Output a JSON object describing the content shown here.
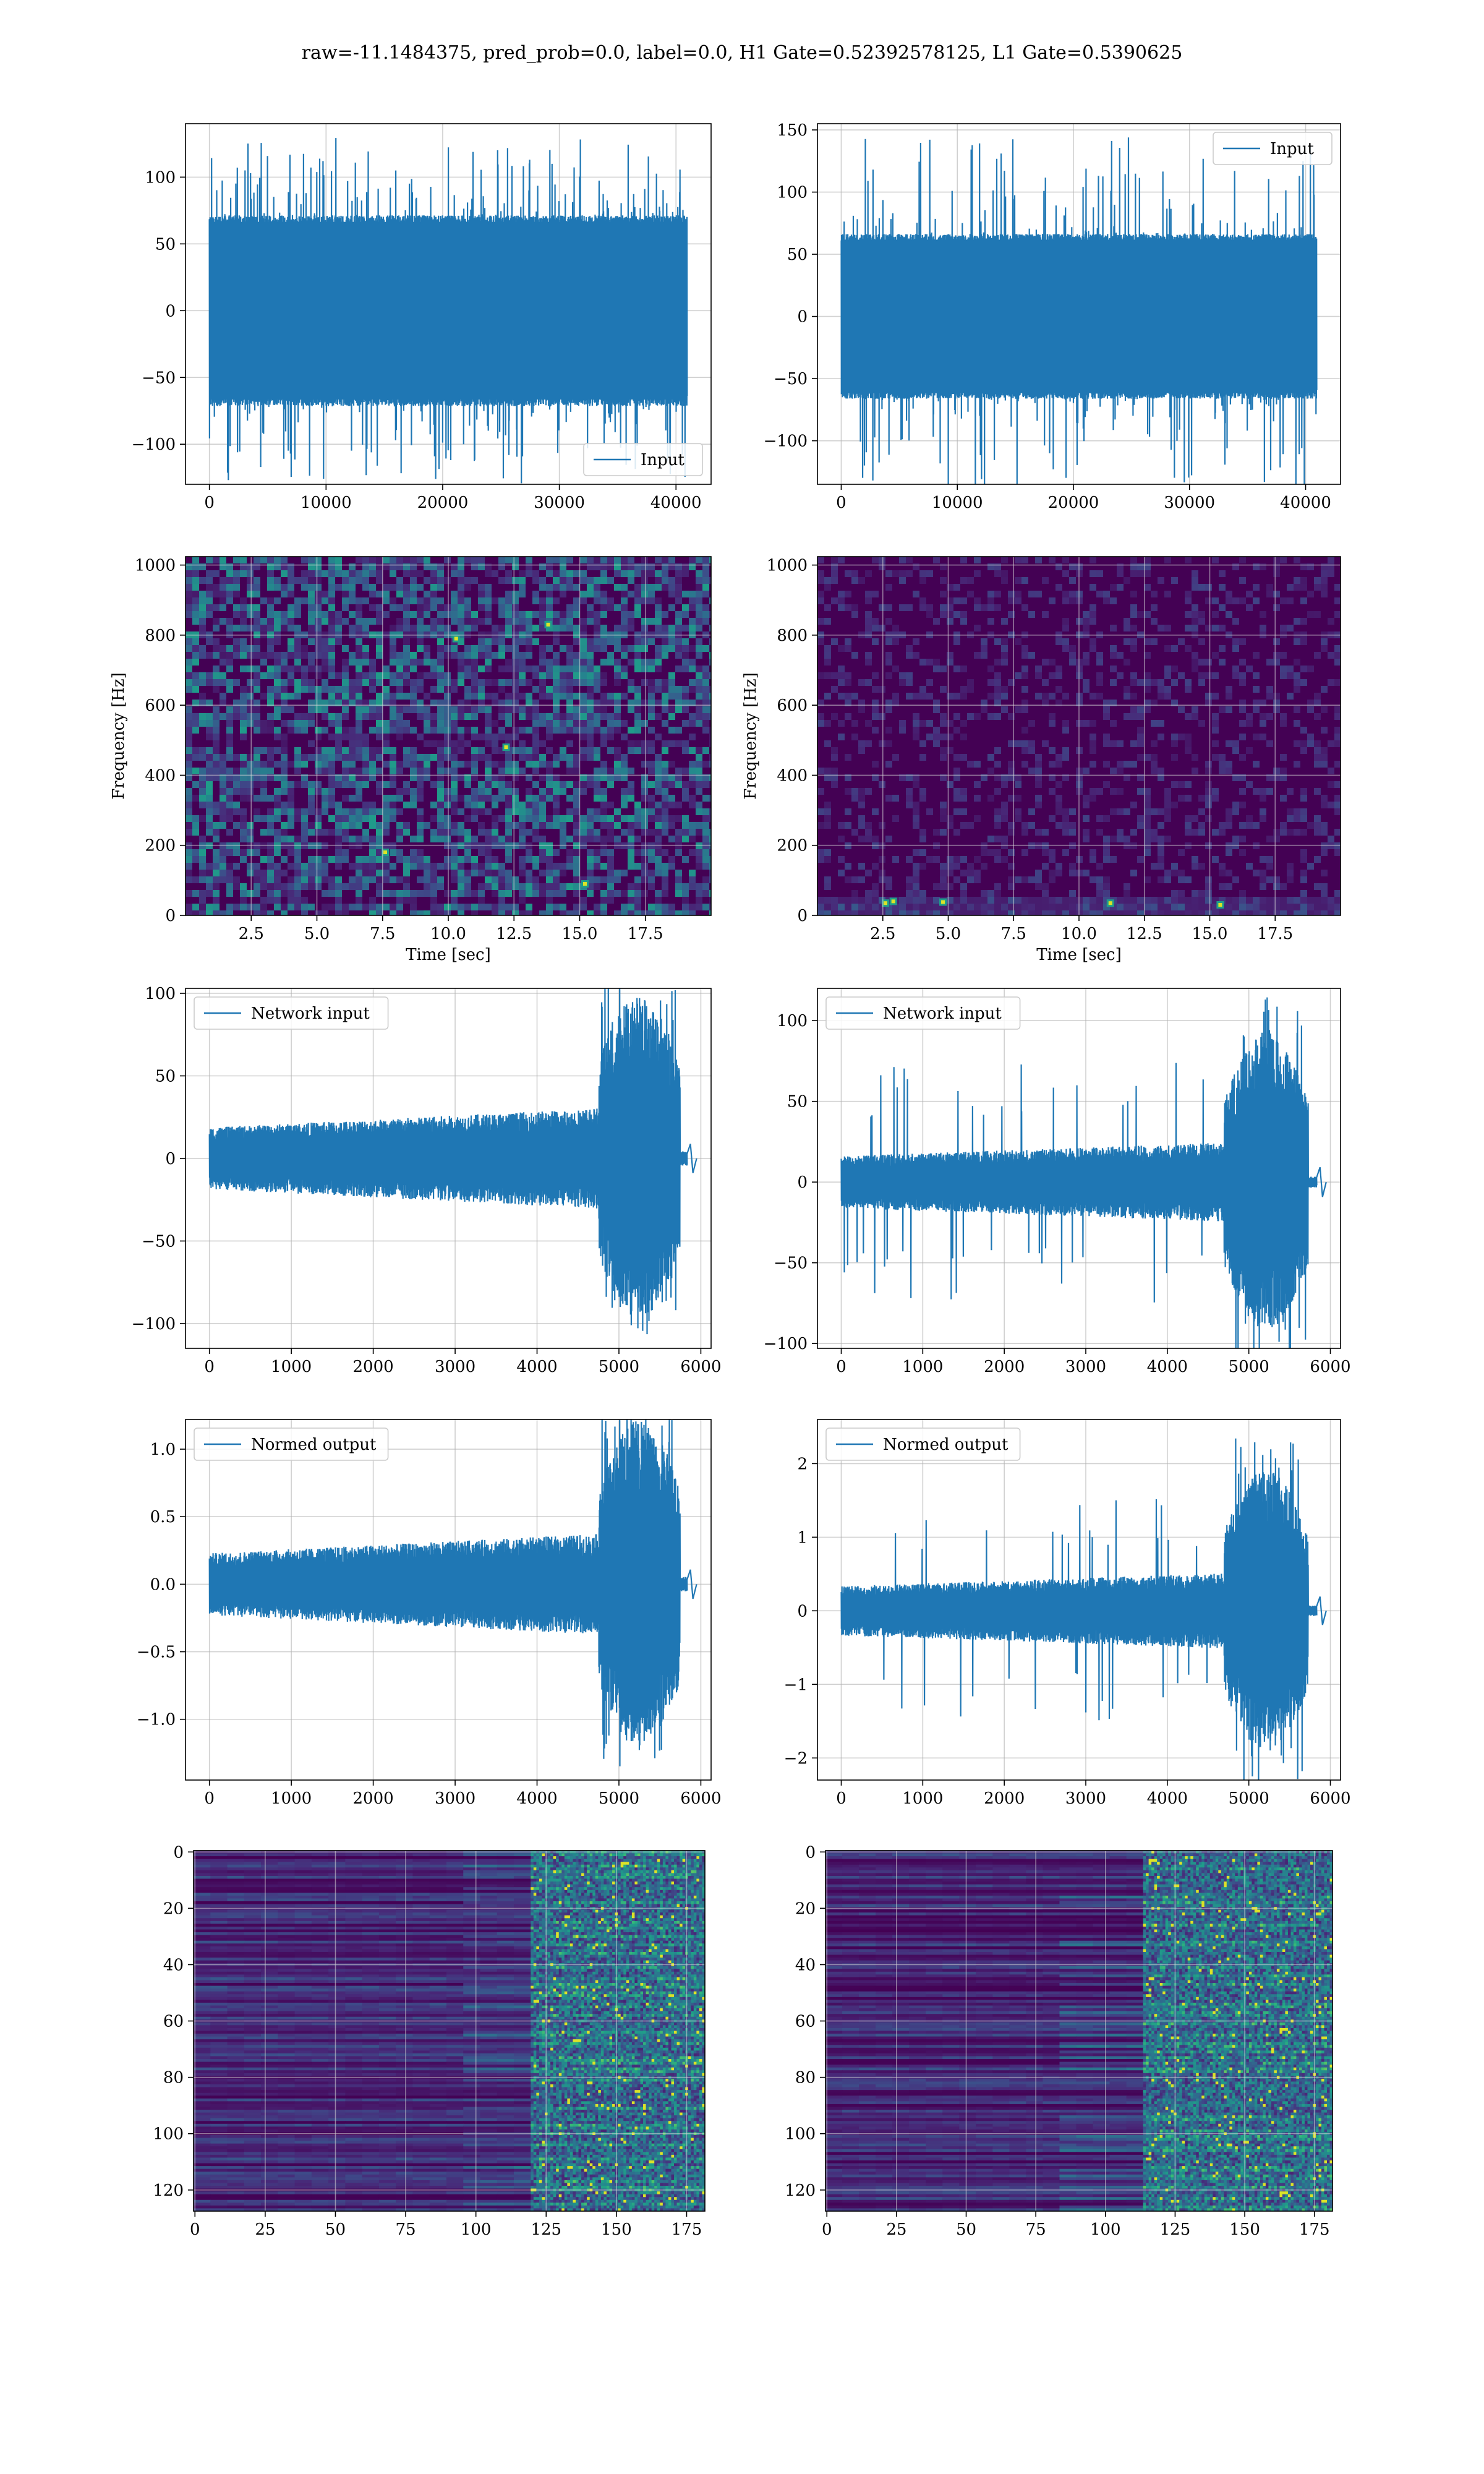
{
  "figure": {
    "title": "raw=-11.1484375, pred_prob=0.0, label=0.0, H1 Gate=0.52392578125, L1 Gate=0.5390625"
  },
  "colors": {
    "line": "#1f77b4",
    "grid": "#b0b0b0",
    "viridis_dark": "#440154",
    "viridis_mid": "#21918c",
    "viridis_light": "#5ec962",
    "viridis_yellow": "#fde725"
  },
  "chart_data": [
    {
      "id": "row1-left",
      "type": "line",
      "legend": [
        "Input"
      ],
      "legend_position": "lower-right",
      "xlim": [
        -2048,
        43008
      ],
      "ylim": [
        -130,
        140
      ],
      "xticks": [
        0,
        10000,
        20000,
        30000,
        40000
      ],
      "xtick_labels": [
        "0",
        "10000",
        "20000",
        "30000",
        "40000"
      ],
      "yticks": [
        -100,
        -50,
        0,
        50,
        100
      ],
      "ytick_labels": [
        "−100",
        "−50",
        "0",
        "50",
        "100"
      ],
      "grid": true,
      "series": [
        {
          "name": "Input",
          "x_range": [
            0,
            40959
          ],
          "body_amplitude": 70,
          "peak_amplitude": 130,
          "shape": "stationary noise"
        }
      ]
    },
    {
      "id": "row1-right",
      "type": "line",
      "legend": [
        "Input"
      ],
      "legend_position": "upper-right",
      "xlim": [
        -2048,
        43008
      ],
      "ylim": [
        -135,
        155
      ],
      "xticks": [
        0,
        10000,
        20000,
        30000,
        40000
      ],
      "xtick_labels": [
        "0",
        "10000",
        "20000",
        "30000",
        "40000"
      ],
      "yticks": [
        -100,
        -50,
        0,
        50,
        100,
        150
      ],
      "ytick_labels": [
        "−100",
        "−50",
        "0",
        "50",
        "100",
        "150"
      ],
      "grid": true,
      "series": [
        {
          "name": "Input",
          "x_range": [
            0,
            40959
          ],
          "body_amplitude": 65,
          "peak_amplitude": 145,
          "shape": "stationary noise"
        }
      ]
    },
    {
      "id": "row2-left",
      "type": "heatmap",
      "colormap": "viridis",
      "xlim": [
        0,
        20
      ],
      "ylim": [
        0,
        1024
      ],
      "xticks": [
        2.5,
        5.0,
        7.5,
        10.0,
        12.5,
        15.0,
        17.5
      ],
      "xtick_labels": [
        "2.5",
        "5.0",
        "7.5",
        "10.0",
        "12.5",
        "15.0",
        "17.5"
      ],
      "yticks": [
        0,
        200,
        400,
        600,
        800,
        1000
      ],
      "ytick_labels": [
        "0",
        "200",
        "400",
        "600",
        "800",
        "1000"
      ],
      "xlabel": "Time [sec]",
      "ylabel": "Frequency [Hz]",
      "grid": true,
      "hotspots": [
        [
          10.3,
          790
        ],
        [
          13.8,
          830
        ],
        [
          15.2,
          90
        ],
        [
          7.6,
          180
        ],
        [
          12.2,
          480
        ]
      ]
    },
    {
      "id": "row2-right",
      "type": "heatmap",
      "colormap": "viridis",
      "xlim": [
        0,
        20
      ],
      "ylim": [
        0,
        1024
      ],
      "xticks": [
        2.5,
        5.0,
        7.5,
        10.0,
        12.5,
        15.0,
        17.5
      ],
      "xtick_labels": [
        "2.5",
        "5.0",
        "7.5",
        "10.0",
        "12.5",
        "15.0",
        "17.5"
      ],
      "yticks": [
        0,
        200,
        400,
        600,
        800,
        1000
      ],
      "ytick_labels": [
        "0",
        "200",
        "400",
        "600",
        "800",
        "1000"
      ],
      "xlabel": "Time [sec]",
      "ylabel": "Frequency [Hz]",
      "grid": true,
      "hotspots": [
        [
          2.6,
          35
        ],
        [
          2.9,
          40
        ],
        [
          11.2,
          35
        ],
        [
          15.4,
          30
        ],
        [
          4.8,
          38
        ]
      ]
    },
    {
      "id": "row3-left",
      "type": "line",
      "legend": [
        "Network input"
      ],
      "legend_position": "upper-left",
      "xlim": [
        -292,
        6125
      ],
      "ylim": [
        -115,
        103
      ],
      "xticks": [
        0,
        1000,
        2000,
        3000,
        4000,
        5000,
        6000
      ],
      "xtick_labels": [
        "0",
        "1000",
        "2000",
        "3000",
        "4000",
        "5000",
        "6000"
      ],
      "yticks": [
        -100,
        -50,
        0,
        50,
        100
      ],
      "ytick_labels": [
        "−100",
        "−50",
        "0",
        "50",
        "100"
      ],
      "grid": true,
      "series": [
        {
          "name": "Network input",
          "x_range": [
            0,
            5833
          ],
          "shape": "small noise growing, large burst 4750–5750, tail blip at 5800",
          "peak_amplitude": 110
        }
      ]
    },
    {
      "id": "row3-right",
      "type": "line",
      "legend": [
        "Network input"
      ],
      "legend_position": "upper-left",
      "xlim": [
        -292,
        6125
      ],
      "ylim": [
        -103,
        120
      ],
      "xticks": [
        0,
        1000,
        2000,
        3000,
        4000,
        5000,
        6000
      ],
      "xtick_labels": [
        "0",
        "1000",
        "2000",
        "3000",
        "4000",
        "5000",
        "6000"
      ],
      "yticks": [
        -100,
        -50,
        0,
        50,
        100
      ],
      "ytick_labels": [
        "−100",
        "−50",
        "0",
        "50",
        "100"
      ],
      "grid": true,
      "series": [
        {
          "name": "Network input",
          "x_range": [
            0,
            5833
          ],
          "shape": "small noise with spikes, burst 4700–5700, tail blip at 5800",
          "peak_amplitude": 115
        }
      ]
    },
    {
      "id": "row4-left",
      "type": "line",
      "legend": [
        "Normed output"
      ],
      "legend_position": "upper-left",
      "xlim": [
        -292,
        6125
      ],
      "ylim": [
        -1.45,
        1.22
      ],
      "xticks": [
        0,
        1000,
        2000,
        3000,
        4000,
        5000,
        6000
      ],
      "xtick_labels": [
        "0",
        "1000",
        "2000",
        "3000",
        "4000",
        "5000",
        "6000"
      ],
      "yticks": [
        -1.0,
        -0.5,
        0.0,
        0.5,
        1.0
      ],
      "ytick_labels": [
        "−1.0",
        "−0.5",
        "0.0",
        "0.5",
        "1.0"
      ],
      "grid": true,
      "series": [
        {
          "name": "Normed output",
          "x_range": [
            0,
            5833
          ],
          "shape": "small noise growing, large burst 4750–5750, tail blip at 5800",
          "peak_amplitude": 1.35
        }
      ]
    },
    {
      "id": "row4-right",
      "type": "line",
      "legend": [
        "Normed output"
      ],
      "legend_position": "upper-left",
      "xlim": [
        -292,
        6125
      ],
      "ylim": [
        -2.3,
        2.6
      ],
      "xticks": [
        0,
        1000,
        2000,
        3000,
        4000,
        5000,
        6000
      ],
      "xtick_labels": [
        "0",
        "1000",
        "2000",
        "3000",
        "4000",
        "5000",
        "6000"
      ],
      "yticks": [
        -2,
        -1,
        0,
        1,
        2
      ],
      "ytick_labels": [
        "−2",
        "−1",
        "0",
        "1",
        "2"
      ],
      "grid": true,
      "series": [
        {
          "name": "Normed output",
          "x_range": [
            0,
            5833
          ],
          "shape": "small noise with spikes, burst 4700–5700, tail blip at 5800",
          "peak_amplitude": 2.4
        }
      ]
    },
    {
      "id": "row5-left",
      "type": "heatmap",
      "colormap": "viridis",
      "xlim": [
        -0.5,
        181.5
      ],
      "ylim": [
        127.5,
        -0.5
      ],
      "rows": 128,
      "cols": 182,
      "xticks": [
        0,
        25,
        50,
        75,
        100,
        125,
        150,
        175
      ],
      "xtick_labels": [
        "0",
        "25",
        "50",
        "75",
        "100",
        "125",
        "150",
        "175"
      ],
      "yticks": [
        0,
        20,
        40,
        60,
        80,
        100,
        120
      ],
      "ytick_labels": [
        "0",
        "20",
        "40",
        "60",
        "80",
        "100",
        "120"
      ],
      "grid": true,
      "activity_onset_col": 120
    },
    {
      "id": "row5-right",
      "type": "heatmap",
      "colormap": "viridis",
      "xlim": [
        -0.5,
        181.5
      ],
      "ylim": [
        127.5,
        -0.5
      ],
      "rows": 128,
      "cols": 182,
      "xticks": [
        0,
        25,
        50,
        75,
        100,
        125,
        150,
        175
      ],
      "xtick_labels": [
        "0",
        "25",
        "50",
        "75",
        "100",
        "125",
        "150",
        "175"
      ],
      "yticks": [
        0,
        20,
        40,
        60,
        80,
        100,
        120
      ],
      "ytick_labels": [
        "0",
        "20",
        "40",
        "60",
        "80",
        "100",
        "120"
      ],
      "grid": true,
      "activity_onset_col": 110
    }
  ]
}
